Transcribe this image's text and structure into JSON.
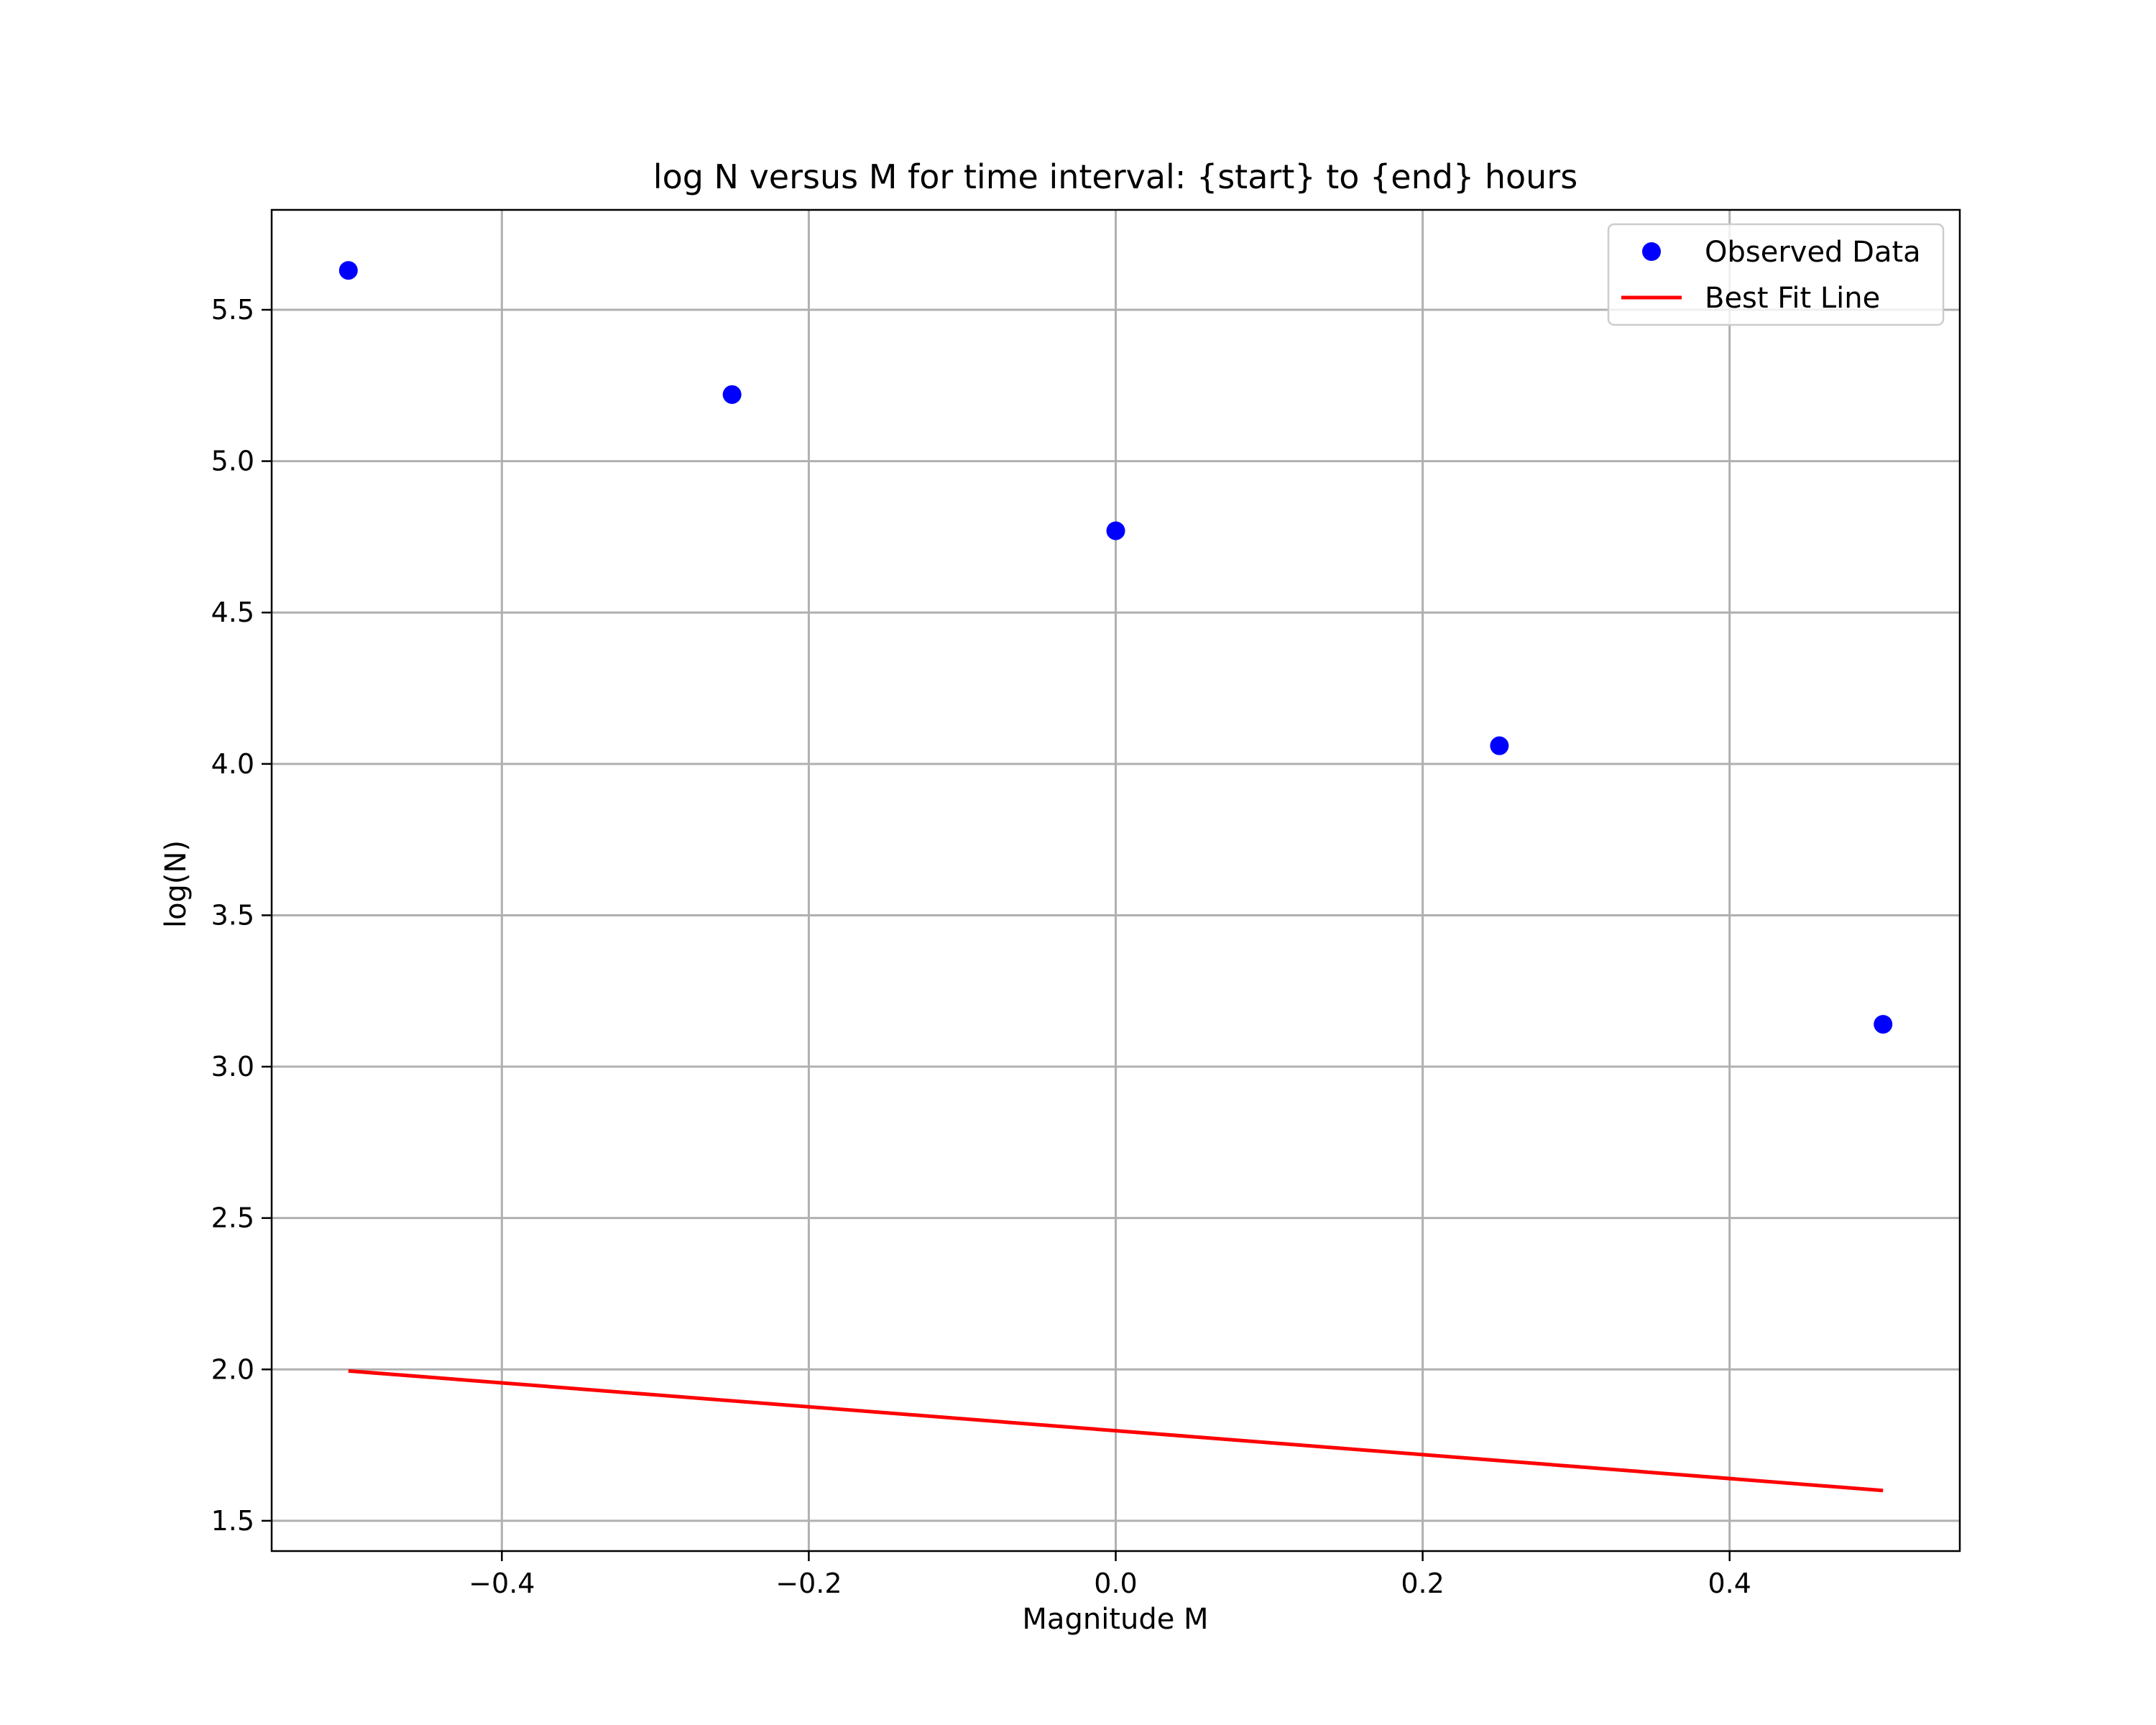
{
  "chart_data": {
    "type": "scatter",
    "title": "log N versus M for time interval: {start} to {end} hours",
    "xlabel": "Magnitude M",
    "ylabel": "log(N)",
    "xlim": [
      -0.55,
      0.55
    ],
    "ylim": [
      1.4,
      5.83
    ],
    "xticks": [
      -0.4,
      -0.2,
      0.0,
      0.2,
      0.4
    ],
    "xtick_labels": [
      "−0.4",
      "−0.2",
      "0.0",
      "0.2",
      "0.4"
    ],
    "yticks": [
      1.5,
      2.0,
      2.5,
      3.0,
      3.5,
      4.0,
      4.5,
      5.0,
      5.5
    ],
    "ytick_labels": [
      "1.5",
      "2.0",
      "2.5",
      "3.0",
      "3.5",
      "4.0",
      "4.5",
      "5.0",
      "5.5"
    ],
    "grid": true,
    "legend_position": "top-right",
    "series": [
      {
        "name": "Observed Data",
        "kind": "scatter",
        "color": "#0000ff",
        "x": [
          -0.5,
          -0.25,
          0.0,
          0.25,
          0.5
        ],
        "y": [
          5.63,
          5.22,
          4.77,
          4.06,
          3.14
        ]
      },
      {
        "name": "Best Fit Line",
        "kind": "line",
        "color": "#ff0000",
        "x": [
          -0.5,
          0.5
        ],
        "y": [
          1.995,
          1.6
        ]
      }
    ]
  }
}
